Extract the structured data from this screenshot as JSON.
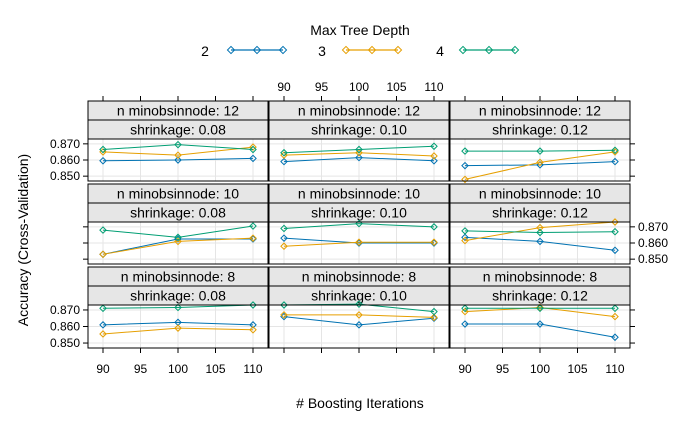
{
  "chart_data": {
    "type": "line",
    "legend_title": "Max Tree Depth",
    "legend_position": "top",
    "xlabel": "# Boosting Iterations",
    "ylabel": "Accuracy (Cross-Validation)",
    "x_ticks": [
      "90",
      "95",
      "100",
      "105",
      "110"
    ],
    "y_ticks": [
      "0.850",
      "0.860",
      "0.870"
    ],
    "xlim": [
      88,
      112
    ],
    "ylim": [
      0.847,
      0.873
    ],
    "grid": true,
    "x": [
      90,
      100,
      110
    ],
    "series_styles": [
      {
        "name": "2",
        "color": "#0072B2"
      },
      {
        "name": "3",
        "color": "#E69F00"
      },
      {
        "name": "4",
        "color": "#009E73"
      }
    ],
    "panels": [
      {
        "strip1": "n minobsinnode: 12",
        "strip2": "shrinkage: 0.08",
        "values": {
          "2": [
            0.8595,
            0.86,
            0.861
          ],
          "3": [
            0.865,
            0.863,
            0.868
          ],
          "4": [
            0.8665,
            0.8695,
            0.8665
          ]
        }
      },
      {
        "strip1": "n minobsinnode: 12",
        "strip2": "shrinkage: 0.10",
        "values": {
          "2": [
            0.859,
            0.8615,
            0.8595
          ],
          "3": [
            0.863,
            0.8645,
            0.8625
          ],
          "4": [
            0.8645,
            0.8665,
            0.8685
          ]
        }
      },
      {
        "strip1": "n minobsinnode: 12",
        "strip2": "shrinkage: 0.12",
        "values": {
          "2": [
            0.8565,
            0.857,
            0.859
          ],
          "3": [
            0.848,
            0.8585,
            0.865
          ],
          "4": [
            0.8655,
            0.8655,
            0.866
          ]
        }
      },
      {
        "strip1": "n minobsinnode: 10",
        "strip2": "shrinkage: 0.08",
        "values": {
          "2": [
            0.853,
            0.8625,
            0.8625
          ],
          "3": [
            0.853,
            0.861,
            0.863
          ],
          "4": [
            0.868,
            0.8635,
            0.8705
          ]
        }
      },
      {
        "strip1": "n minobsinnode: 10",
        "strip2": "shrinkage: 0.10",
        "values": {
          "2": [
            0.863,
            0.86,
            0.86
          ],
          "3": [
            0.858,
            0.8605,
            0.8605
          ],
          "4": [
            0.869,
            0.872,
            0.87
          ]
        }
      },
      {
        "strip1": "n minobsinnode: 10",
        "strip2": "shrinkage: 0.12",
        "values": {
          "2": [
            0.8635,
            0.861,
            0.8555
          ],
          "3": [
            0.8615,
            0.8695,
            0.873
          ],
          "4": [
            0.8675,
            0.8665,
            0.867
          ]
        }
      },
      {
        "strip1": "n minobsinnode:  8",
        "strip2": "shrinkage: 0.08",
        "values": {
          "2": [
            0.861,
            0.8625,
            0.861
          ],
          "3": [
            0.8555,
            0.859,
            0.858
          ],
          "4": [
            0.871,
            0.8715,
            0.873
          ]
        }
      },
      {
        "strip1": "n minobsinnode:  8",
        "strip2": "shrinkage: 0.10",
        "values": {
          "2": [
            0.866,
            0.861,
            0.865
          ],
          "3": [
            0.867,
            0.867,
            0.8655
          ],
          "4": [
            0.873,
            0.8735,
            0.869
          ]
        }
      },
      {
        "strip1": "n minobsinnode:  8",
        "strip2": "shrinkage: 0.12",
        "values": {
          "2": [
            0.8615,
            0.8615,
            0.8535
          ],
          "3": [
            0.869,
            0.8715,
            0.866
          ],
          "4": [
            0.871,
            0.871,
            0.871
          ]
        }
      }
    ]
  }
}
